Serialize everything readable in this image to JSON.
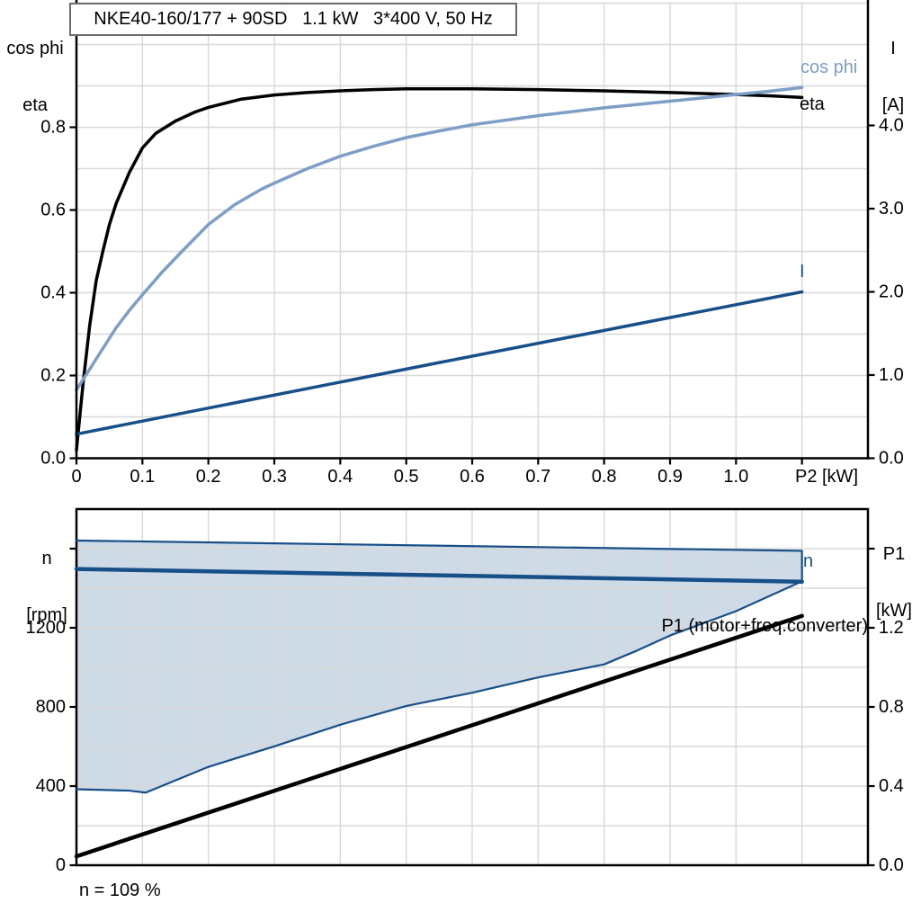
{
  "colors": {
    "curve_black": "#000000",
    "curve_light_blue": "#7D9EC6",
    "curve_dark_blue": "#174F88",
    "band_fill": "#CFDAE7",
    "band_stroke": "#174F88",
    "grid": "#D8D8D8",
    "axis": "#000000"
  },
  "chart_data": [
    {
      "id": "top-chart",
      "type": "line",
      "title": "NKE40-160/177 + 90SD   1.1 kW   3*400 V, 50 Hz",
      "x_axis": {
        "unit_label": "P2 [kW]",
        "range": [
          0,
          1.2
        ],
        "grid_step": 0.1,
        "ticks": [
          0,
          0.1,
          0.2,
          0.3,
          0.4,
          0.5,
          0.6,
          0.7,
          0.8,
          0.9,
          1.0,
          1.1
        ],
        "tick_labels": [
          "0",
          "0.1",
          "0.2",
          "0.3",
          "0.4",
          "0.5",
          "0.6",
          "0.7",
          "0.8",
          "0.9",
          "1.0",
          ""
        ]
      },
      "y_left": {
        "label_lines": [
          "cos phi",
          "eta"
        ],
        "range": [
          0,
          1.1
        ],
        "grid_step": 0.1,
        "ticks": [
          0,
          0.2,
          0.4,
          0.6,
          0.8
        ],
        "tick_labels": [
          "0.0",
          "0.2",
          "0.4",
          "0.6",
          "0.8"
        ]
      },
      "y_right": {
        "label_lines": [
          "I",
          "[A]"
        ],
        "range": [
          0,
          5.5
        ],
        "ticks": [
          0,
          1,
          2,
          3,
          4
        ],
        "tick_labels": [
          "0.0",
          "1.0",
          "2.0",
          "3.0",
          "4.0"
        ]
      },
      "series": [
        {
          "name": "eta",
          "label": "eta",
          "axis": "left",
          "color": "#000000",
          "width": 3.5,
          "points": [
            [
              0,
              0.02
            ],
            [
              0.005,
              0.1
            ],
            [
              0.01,
              0.18
            ],
            [
              0.02,
              0.32
            ],
            [
              0.03,
              0.43
            ],
            [
              0.04,
              0.5
            ],
            [
              0.05,
              0.565
            ],
            [
              0.06,
              0.615
            ],
            [
              0.08,
              0.69
            ],
            [
              0.1,
              0.75
            ],
            [
              0.12,
              0.785
            ],
            [
              0.15,
              0.815
            ],
            [
              0.18,
              0.837
            ],
            [
              0.2,
              0.848
            ],
            [
              0.25,
              0.868
            ],
            [
              0.3,
              0.878
            ],
            [
              0.35,
              0.884
            ],
            [
              0.4,
              0.888
            ],
            [
              0.45,
              0.891
            ],
            [
              0.5,
              0.893
            ],
            [
              0.6,
              0.893
            ],
            [
              0.7,
              0.891
            ],
            [
              0.8,
              0.888
            ],
            [
              0.9,
              0.884
            ],
            [
              1.0,
              0.879
            ],
            [
              1.05,
              0.876
            ],
            [
              1.1,
              0.872
            ]
          ]
        },
        {
          "name": "cos phi",
          "label": "cos phi",
          "axis": "left",
          "color": "#7D9EC6",
          "width": 3.5,
          "points": [
            [
              0,
              0.165
            ],
            [
              0.02,
              0.215
            ],
            [
              0.04,
              0.265
            ],
            [
              0.06,
              0.315
            ],
            [
              0.08,
              0.357
            ],
            [
              0.1,
              0.395
            ],
            [
              0.13,
              0.45
            ],
            [
              0.16,
              0.5
            ],
            [
              0.2,
              0.565
            ],
            [
              0.24,
              0.613
            ],
            [
              0.28,
              0.65
            ],
            [
              0.3,
              0.665
            ],
            [
              0.35,
              0.7
            ],
            [
              0.4,
              0.73
            ],
            [
              0.45,
              0.754
            ],
            [
              0.5,
              0.775
            ],
            [
              0.55,
              0.791
            ],
            [
              0.6,
              0.806
            ],
            [
              0.7,
              0.828
            ],
            [
              0.8,
              0.847
            ],
            [
              0.9,
              0.863
            ],
            [
              1.0,
              0.879
            ],
            [
              1.05,
              0.887
            ],
            [
              1.1,
              0.896
            ]
          ]
        },
        {
          "name": "I",
          "label": "I",
          "axis": "right",
          "color": "#174F88",
          "width": 3.5,
          "points": [
            [
              0,
              0.29
            ],
            [
              0.55,
              1.15
            ],
            [
              1.1,
              2.0
            ]
          ]
        }
      ]
    },
    {
      "id": "bottom-chart",
      "type": "line",
      "annotation": "n = 109 %",
      "x_axis": {
        "range": [
          0,
          1.2
        ],
        "grid_step": 0.1,
        "ticks": [],
        "tick_labels": []
      },
      "y_left": {
        "label_lines": [
          "n",
          "[rpm]"
        ],
        "range": [
          0,
          1800
        ],
        "grid_step": 200,
        "ticks": [
          0,
          400,
          800,
          1200,
          1600
        ],
        "tick_labels": [
          "0",
          "400",
          "800",
          "1200",
          ""
        ]
      },
      "y_right": {
        "label_lines": [
          "P1",
          "[kW]"
        ],
        "range": [
          0,
          1.8
        ],
        "ticks": [
          0,
          0.4,
          0.8,
          1.2,
          1.6
        ],
        "tick_labels": [
          "0.0",
          "0.4",
          "0.8",
          "1.2",
          ""
        ]
      },
      "band": {
        "name": "allowed-speed-range",
        "fill": "#CFDAE7",
        "stroke": "#174F88",
        "upper": [
          [
            0,
            1641
          ],
          [
            1.1,
            1589
          ]
        ],
        "lower": [
          [
            0,
            384
          ],
          [
            0.08,
            377
          ],
          [
            0.105,
            367
          ],
          [
            0.2,
            497
          ],
          [
            0.3,
            601
          ],
          [
            0.4,
            710
          ],
          [
            0.5,
            805
          ],
          [
            0.6,
            872
          ],
          [
            0.7,
            949
          ],
          [
            0.8,
            1015
          ],
          [
            0.85,
            1085
          ],
          [
            0.9,
            1161
          ],
          [
            1.0,
            1284
          ],
          [
            1.1,
            1435
          ]
        ]
      },
      "series": [
        {
          "name": "n",
          "label": "n",
          "axis": "left",
          "color": "#174F88",
          "width": 4.5,
          "points": [
            [
              0,
              1497
            ],
            [
              1.1,
              1433
            ]
          ]
        },
        {
          "name": "P1",
          "label": "P1 (motor+freq.converter)",
          "axis": "right",
          "color": "#000000",
          "width": 4.5,
          "points": [
            [
              0,
              0.045
            ],
            [
              1.1,
              1.26
            ]
          ]
        }
      ]
    }
  ]
}
